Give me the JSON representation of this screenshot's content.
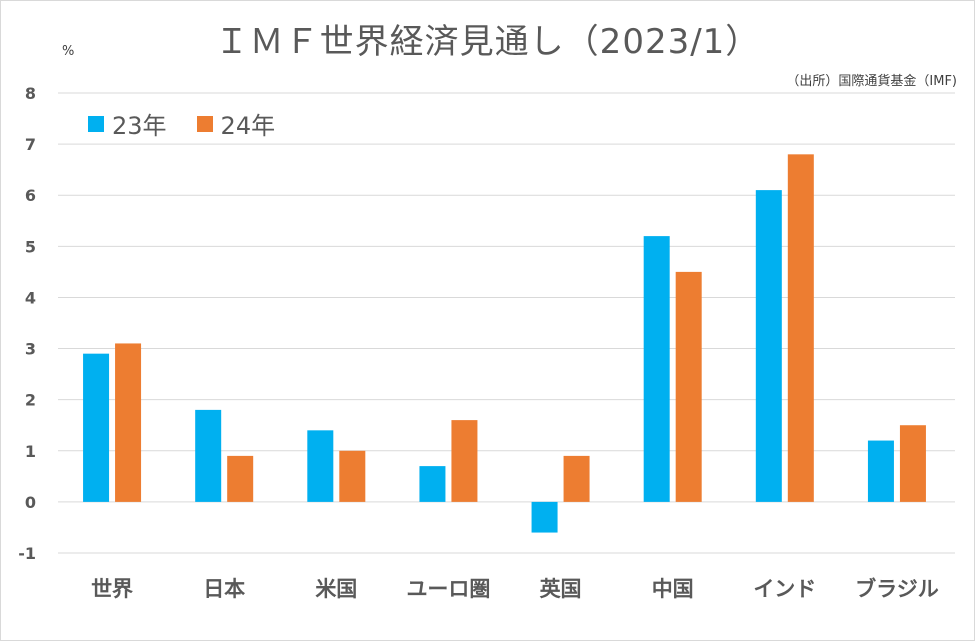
{
  "chart_data": {
    "type": "bar",
    "title": "ＩＭＦ世界経済見通し（2023/1）",
    "source": "（出所）国際通貨基金（IMF)",
    "ylabel": "%",
    "ylim": [
      -1,
      8
    ],
    "yticks": [
      -1,
      0,
      1,
      2,
      3,
      4,
      5,
      6,
      7,
      8
    ],
    "grid": true,
    "legend_position": "top-left",
    "categories": [
      "世界",
      "日本",
      "米国",
      "ユーロ圏",
      "英国",
      "中国",
      "インド",
      "ブラジル"
    ],
    "series": [
      {
        "name": "23年",
        "color": "#00b0f0",
        "values": [
          2.9,
          1.8,
          1.4,
          0.7,
          -0.6,
          5.2,
          6.1,
          1.2
        ]
      },
      {
        "name": "24年",
        "color": "#ed7d31",
        "values": [
          3.1,
          0.9,
          1.0,
          1.6,
          0.9,
          4.5,
          6.8,
          1.5
        ]
      }
    ]
  }
}
